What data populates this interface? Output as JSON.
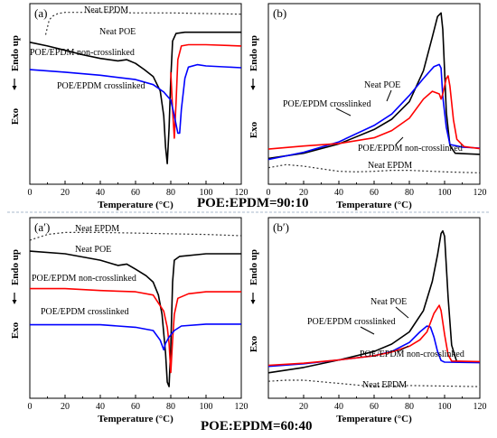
{
  "colors": {
    "neat_epdm": "#333333",
    "neat_poe": "#000000",
    "non_crosslinked": "#ff0000",
    "crosslinked": "#0000ff",
    "divider": "#a9b8cc"
  },
  "ratios": [
    "POE:EPDM=90:10",
    "POE:EPDM=60:40"
  ],
  "chart_data": [
    {
      "type": "line",
      "panel": "(a)",
      "xlabel": "Temperature (°C)",
      "ylabel_up": "Endo up",
      "ylabel_down": "Exo",
      "xlim": [
        0,
        120
      ],
      "xticks": [
        0,
        20,
        40,
        60,
        80,
        100,
        120
      ],
      "y_tick_labels": false,
      "series": [
        {
          "name": "Neat EPDM",
          "style": "dotted",
          "points": [
            [
              9,
              -2
            ],
            [
              11,
              0.4
            ],
            [
              13,
              1.0
            ],
            [
              16,
              1.4
            ],
            [
              20,
              1.6
            ],
            [
              40,
              1.6
            ],
            [
              60,
              1.5
            ],
            [
              80,
              1.5
            ],
            [
              100,
              1.4
            ],
            [
              120,
              1.3
            ]
          ]
        },
        {
          "name": "Neat POE",
          "style": "solid",
          "points": [
            [
              0,
              -3.2
            ],
            [
              10,
              -3.8
            ],
            [
              20,
              -4.5
            ],
            [
              30,
              -5.2
            ],
            [
              40,
              -5.8
            ],
            [
              50,
              -6.2
            ],
            [
              55,
              -6.0
            ],
            [
              60,
              -6.6
            ],
            [
              65,
              -7.6
            ],
            [
              70,
              -8.7
            ],
            [
              74,
              -11
            ],
            [
              76,
              -15
            ],
            [
              77,
              -20
            ],
            [
              78,
              -22.7
            ],
            [
              79,
              -17
            ],
            [
              80,
              -9
            ],
            [
              81,
              -3
            ],
            [
              83,
              -1.8
            ],
            [
              88,
              -1.6
            ],
            [
              100,
              -1.6
            ],
            [
              120,
              -1.6
            ]
          ]
        },
        {
          "name": "POE/EPDM non-crosslinked",
          "style": "solid",
          "points": [
            [
              80,
              -8
            ],
            [
              81,
              -14
            ],
            [
              82,
              -18.6
            ],
            [
              83,
              -13
            ],
            [
              84,
              -6
            ],
            [
              86,
              -3.8
            ],
            [
              90,
              -3.6
            ],
            [
              100,
              -3.6
            ],
            [
              120,
              -3.8
            ]
          ]
        },
        {
          "name": "POE/EPDM crosslinked",
          "style": "solid",
          "points": [
            [
              0,
              -7.6
            ],
            [
              20,
              -8.0
            ],
            [
              40,
              -8.5
            ],
            [
              60,
              -9.2
            ],
            [
              70,
              -10.0
            ],
            [
              76,
              -11.2
            ],
            [
              80,
              -12.5
            ],
            [
              82,
              -15
            ],
            [
              84,
              -17.8
            ],
            [
              85,
              -17.8
            ],
            [
              86,
              -14
            ],
            [
              88,
              -9
            ],
            [
              90,
              -7.2
            ],
            [
              95,
              -6.8
            ],
            [
              100,
              -7.0
            ],
            [
              120,
              -7.3
            ]
          ]
        }
      ],
      "annotations": [
        "Neat EPDM",
        "Neat POE",
        "POE/EPDM non-crosslinked",
        "POE/EPDM crosslinked"
      ]
    },
    {
      "type": "line",
      "panel": "(b)",
      "xlabel": "Temperature (°C)",
      "ylabel_up": "Endo up",
      "ylabel_down": "Exo",
      "xlim": [
        0,
        120
      ],
      "xticks": [
        0,
        20,
        40,
        60,
        80,
        100,
        120
      ],
      "y_tick_labels": false,
      "series": [
        {
          "name": "Neat POE",
          "style": "solid",
          "points": [
            [
              0,
              1.0
            ],
            [
              20,
              2.0
            ],
            [
              40,
              3.8
            ],
            [
              60,
              6.6
            ],
            [
              70,
              8.6
            ],
            [
              80,
              12
            ],
            [
              88,
              18
            ],
            [
              93,
              24.5
            ],
            [
              96,
              28.5
            ],
            [
              98,
              29.2
            ],
            [
              99,
              26
            ],
            [
              100,
              18
            ],
            [
              101,
              10
            ],
            [
              103,
              3.5
            ],
            [
              106,
              2.0
            ],
            [
              120,
              1.8
            ]
          ]
        },
        {
          "name": "POE/EPDM crosslinked",
          "style": "solid",
          "points": [
            [
              0,
              0.8
            ],
            [
              20,
              2.2
            ],
            [
              40,
              4.2
            ],
            [
              60,
              7.4
            ],
            [
              70,
              9.6
            ],
            [
              80,
              13.2
            ],
            [
              88,
              16.5
            ],
            [
              94,
              18.8
            ],
            [
              97,
              19.2
            ],
            [
              98,
              18.5
            ],
            [
              99,
              13
            ],
            [
              101,
              7.0
            ],
            [
              103,
              3.7
            ],
            [
              110,
              3.2
            ],
            [
              120,
              3.0
            ]
          ]
        },
        {
          "name": "POE/EPDM non-crosslinked",
          "style": "solid",
          "points": [
            [
              0,
              2.8
            ],
            [
              20,
              3.4
            ],
            [
              40,
              3.9
            ],
            [
              60,
              5.0
            ],
            [
              70,
              6.4
            ],
            [
              80,
              8.8
            ],
            [
              88,
              12.5
            ],
            [
              93,
              14
            ],
            [
              97,
              13.5
            ],
            [
              98,
              12.5
            ],
            [
              99,
              13.5
            ],
            [
              101,
              16.5
            ],
            [
              102,
              17
            ],
            [
              103,
              15
            ],
            [
              105,
              8.5
            ],
            [
              107,
              4.7
            ],
            [
              111,
              3.3
            ],
            [
              120,
              2.9
            ]
          ]
        },
        {
          "name": "Neat EPDM",
          "style": "dotted",
          "points": [
            [
              0,
              -0.8
            ],
            [
              10,
              -0.2
            ],
            [
              20,
              -0.5
            ],
            [
              30,
              -1.0
            ],
            [
              40,
              -1.5
            ],
            [
              50,
              -1.6
            ],
            [
              60,
              -1.5
            ],
            [
              70,
              -1.3
            ],
            [
              80,
              -1.3
            ],
            [
              100,
              -1.6
            ],
            [
              120,
              -1.8
            ]
          ]
        }
      ],
      "annotations": [
        "Neat POE",
        "POE/EPDM crosslinked",
        "POE/EPDM non-crosslinked",
        "Neat EPDM"
      ]
    },
    {
      "type": "line",
      "panel": "(a′)",
      "xlabel": "Temperature (°C)",
      "ylabel_up": "Endo up",
      "ylabel_down": "Exo",
      "xlim": [
        0,
        120
      ],
      "xticks": [
        0,
        20,
        40,
        60,
        80,
        100,
        120
      ],
      "y_tick_labels": false,
      "series": [
        {
          "name": "Neat EPDM",
          "style": "dotted",
          "points": [
            [
              0,
              -1.5
            ],
            [
              10,
              -0.6
            ],
            [
              20,
              -0.3
            ],
            [
              40,
              -0.3
            ],
            [
              60,
              -0.4
            ],
            [
              80,
              -0.5
            ],
            [
              100,
              -0.6
            ],
            [
              120,
              -0.8
            ]
          ]
        },
        {
          "name": "Neat POE",
          "style": "solid",
          "points": [
            [
              0,
              -3.2
            ],
            [
              20,
              -3.6
            ],
            [
              40,
              -4.6
            ],
            [
              50,
              -5.4
            ],
            [
              55,
              -5.2
            ],
            [
              60,
              -6.0
            ],
            [
              66,
              -7.0
            ],
            [
              70,
              -8.0
            ],
            [
              73,
              -10
            ],
            [
              75,
              -13
            ],
            [
              77,
              -19
            ],
            [
              78,
              -23.5
            ],
            [
              79,
              -24.2
            ],
            [
              80,
              -18
            ],
            [
              81,
              -8
            ],
            [
              82,
              -4.6
            ],
            [
              85,
              -4.0
            ],
            [
              100,
              -3.6
            ],
            [
              120,
              -3.6
            ]
          ]
        },
        {
          "name": "POE/EPDM non-crosslinked",
          "style": "solid",
          "points": [
            [
              0,
              -9.0
            ],
            [
              20,
              -9.0
            ],
            [
              40,
              -9.3
            ],
            [
              60,
              -9.5
            ],
            [
              70,
              -10.0
            ],
            [
              76,
              -12.5
            ],
            [
              78,
              -15
            ],
            [
              79,
              -17.5
            ],
            [
              80,
              -22
            ],
            [
              81,
              -17
            ],
            [
              82,
              -13
            ],
            [
              84,
              -10.5
            ],
            [
              90,
              -9.8
            ],
            [
              100,
              -9.5
            ],
            [
              120,
              -9.5
            ]
          ]
        },
        {
          "name": "POE/EPDM crosslinked",
          "style": "solid",
          "points": [
            [
              0,
              -14.6
            ],
            [
              20,
              -14.6
            ],
            [
              40,
              -14.6
            ],
            [
              60,
              -15.0
            ],
            [
              70,
              -15.5
            ],
            [
              74,
              -17
            ],
            [
              76,
              -18.5
            ],
            [
              77,
              -17.5
            ],
            [
              79,
              -16.5
            ],
            [
              82,
              -15.5
            ],
            [
              86,
              -14.8
            ],
            [
              100,
              -14.5
            ],
            [
              120,
              -14.5
            ]
          ]
        }
      ],
      "annotations": [
        "Neat EPDM",
        "Neat POE",
        "POE/EPDM non-crosslinked",
        "POE/EPDM crosslinked"
      ]
    },
    {
      "type": "line",
      "panel": "(b′)",
      "xlabel": "Temperature (°C)",
      "ylabel_up": "Endo up",
      "ylabel_down": "Exo",
      "xlim": [
        0,
        120
      ],
      "xticks": [
        20,
        40,
        60,
        80,
        100,
        120
      ],
      "y_tick_labels": false,
      "series": [
        {
          "name": "Neat POE",
          "style": "solid",
          "points": [
            [
              0,
              0.8
            ],
            [
              20,
              1.8
            ],
            [
              40,
              3.2
            ],
            [
              60,
              4.8
            ],
            [
              70,
              6.2
            ],
            [
              80,
              8.5
            ],
            [
              88,
              12.5
            ],
            [
              93,
              18
            ],
            [
              96,
              23
            ],
            [
              98,
              27
            ],
            [
              99,
              27.5
            ],
            [
              100,
              26.5
            ],
            [
              102,
              15
            ],
            [
              104,
              6.0
            ],
            [
              107,
              2.8
            ],
            [
              120,
              2.8
            ]
          ]
        },
        {
          "name": "POE/EPDM crosslinked",
          "style": "solid",
          "points": [
            [
              0,
              2.0
            ],
            [
              20,
              2.5
            ],
            [
              40,
              3.2
            ],
            [
              60,
              4.0
            ],
            [
              70,
              4.8
            ],
            [
              80,
              6.5
            ],
            [
              86,
              8.5
            ],
            [
              90,
              9.6
            ],
            [
              92,
              9.4
            ],
            [
              94,
              7.5
            ],
            [
              96,
              4.8
            ],
            [
              98,
              3.1
            ],
            [
              100,
              2.8
            ],
            [
              120,
              2.7
            ]
          ]
        },
        {
          "name": "POE/EPDM non-crosslinked",
          "style": "solid",
          "points": [
            [
              0,
              2.2
            ],
            [
              20,
              2.6
            ],
            [
              40,
              3.2
            ],
            [
              60,
              4.0
            ],
            [
              70,
              4.7
            ],
            [
              80,
              5.8
            ],
            [
              86,
              7.0
            ],
            [
              90,
              8.5
            ],
            [
              94,
              12
            ],
            [
              97,
              13.5
            ],
            [
              98,
              12.5
            ],
            [
              100,
              8
            ],
            [
              102,
              4.2
            ],
            [
              104,
              3.0
            ],
            [
              120,
              2.9
            ]
          ]
        },
        {
          "name": "Neat EPDM",
          "style": "dotted",
          "points": [
            [
              0,
              -0.8
            ],
            [
              10,
              -0.6
            ],
            [
              20,
              -0.6
            ],
            [
              40,
              -1.2
            ],
            [
              60,
              -1.8
            ],
            [
              80,
              -1.6
            ],
            [
              100,
              -1.7
            ],
            [
              120,
              -1.8
            ]
          ]
        }
      ],
      "annotations": [
        "Neat POE",
        "POE/EPDM crosslinked",
        "POE/EPDM non-crosslinked",
        "Neat EPDM"
      ]
    }
  ]
}
